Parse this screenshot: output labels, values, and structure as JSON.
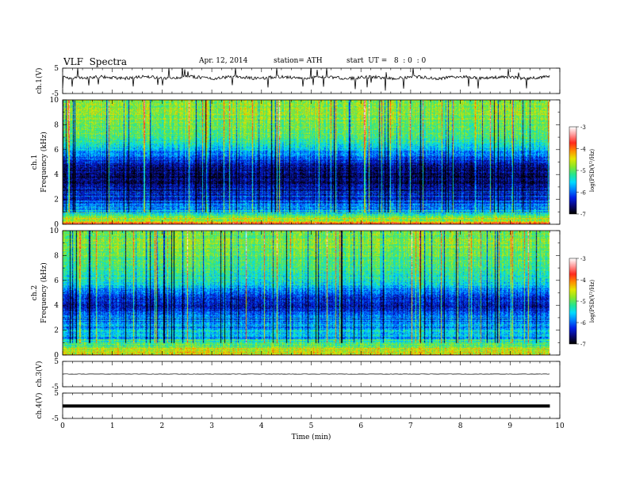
{
  "header": {
    "title": "VLF  Spectra",
    "date": "Apr. 12, 2014",
    "station": "station= ATH",
    "start": "start  UT =   8  : 0  : 0"
  },
  "chart_data": [
    {
      "type": "line",
      "panel": "ch1-waveform",
      "ylabel": "ch.1(V)",
      "ylim": [
        -5,
        5
      ],
      "yticks": [
        "5",
        "-5"
      ],
      "x_range_min": [
        0,
        9.8
      ],
      "baseline_level": 1.3,
      "trace_color": "#000000"
    },
    {
      "type": "heatmap",
      "panel": "ch1-spectrogram",
      "ylabel": [
        "ch.1",
        "Frequency  (kHz)"
      ],
      "ylim": [
        0,
        10
      ],
      "yticks": [
        "0",
        "2",
        "4",
        "6",
        "8",
        "10"
      ],
      "x_range_min": [
        0,
        9.8
      ],
      "level_profile_kHz_to_logPSD": [
        [
          0.0,
          -4.0
        ],
        [
          0.5,
          -4.8
        ],
        [
          1.0,
          -5.6
        ],
        [
          1.5,
          -6.0
        ],
        [
          2.0,
          -6.2
        ],
        [
          2.5,
          -6.4
        ],
        [
          3.0,
          -6.6
        ],
        [
          3.5,
          -6.7
        ],
        [
          4.0,
          -6.7
        ],
        [
          4.5,
          -6.6
        ],
        [
          5.0,
          -6.4
        ],
        [
          5.5,
          -6.0
        ],
        [
          6.0,
          -5.7
        ],
        [
          6.5,
          -5.3
        ],
        [
          7.0,
          -5.1
        ],
        [
          8.0,
          -4.9
        ],
        [
          9.0,
          -4.8
        ],
        [
          10.0,
          -4.8
        ]
      ],
      "colorbar": {
        "label": "log(PSD(V²/Hz)",
        "range": [
          -7,
          -3
        ],
        "ticks": [
          "-3",
          "-4",
          "-5",
          "-6",
          "-7"
        ]
      }
    },
    {
      "type": "heatmap",
      "panel": "ch2-spectrogram",
      "ylabel": [
        "ch.2",
        "Frequency  (kHz)"
      ],
      "ylim": [
        0,
        10
      ],
      "yticks": [
        "0",
        "2",
        "4",
        "6",
        "8",
        "10"
      ],
      "x_range_min": [
        0,
        9.8
      ],
      "level_profile_kHz_to_logPSD": [
        [
          0.0,
          -4.2
        ],
        [
          0.5,
          -4.8
        ],
        [
          1.0,
          -5.3
        ],
        [
          1.5,
          -5.6
        ],
        [
          2.0,
          -5.7
        ],
        [
          2.5,
          -5.8
        ],
        [
          3.0,
          -5.9
        ],
        [
          3.5,
          -6.2
        ],
        [
          4.0,
          -6.4
        ],
        [
          4.5,
          -6.3
        ],
        [
          5.0,
          -6.0
        ],
        [
          5.5,
          -5.7
        ],
        [
          6.0,
          -5.4
        ],
        [
          7.0,
          -5.2
        ],
        [
          8.0,
          -5.0
        ],
        [
          9.0,
          -4.9
        ],
        [
          10.0,
          -4.9
        ]
      ],
      "colorbar": {
        "label": "log(PSD(V²/Hz)",
        "range": [
          -7,
          -3
        ],
        "ticks": [
          "-3",
          "-4",
          "-5",
          "-6",
          "-7"
        ]
      }
    },
    {
      "type": "line",
      "panel": "ch3-waveform",
      "ylabel": "ch.3(V)",
      "ylim": [
        -5,
        5
      ],
      "yticks": [
        "5",
        "-5"
      ],
      "x_range_min": [
        0,
        9.8
      ],
      "baseline_level": 0.0,
      "trace_color": "#000000"
    },
    {
      "type": "line",
      "panel": "ch4-waveform",
      "ylabel": "ch.4(V)",
      "ylim": [
        -5,
        5
      ],
      "yticks": [
        "5",
        "-5"
      ],
      "x_range_min": [
        0,
        9.8
      ],
      "baseline_level": -0.1,
      "trace_color": "#000000"
    }
  ],
  "x_axis": {
    "label": "Time  (min)",
    "range": [
      0,
      10
    ],
    "ticks": [
      "0",
      "1",
      "2",
      "3",
      "4",
      "5",
      "6",
      "7",
      "8",
      "9",
      "10"
    ]
  },
  "colors": {
    "colormap": [
      "#000000",
      "#0a0a78",
      "#0020e6",
      "#0080ff",
      "#00dcff",
      "#28e68c",
      "#8ce628",
      "#e6e600",
      "#ff8c00",
      "#ff2a1e",
      "#ff9696",
      "#ffffff"
    ]
  }
}
